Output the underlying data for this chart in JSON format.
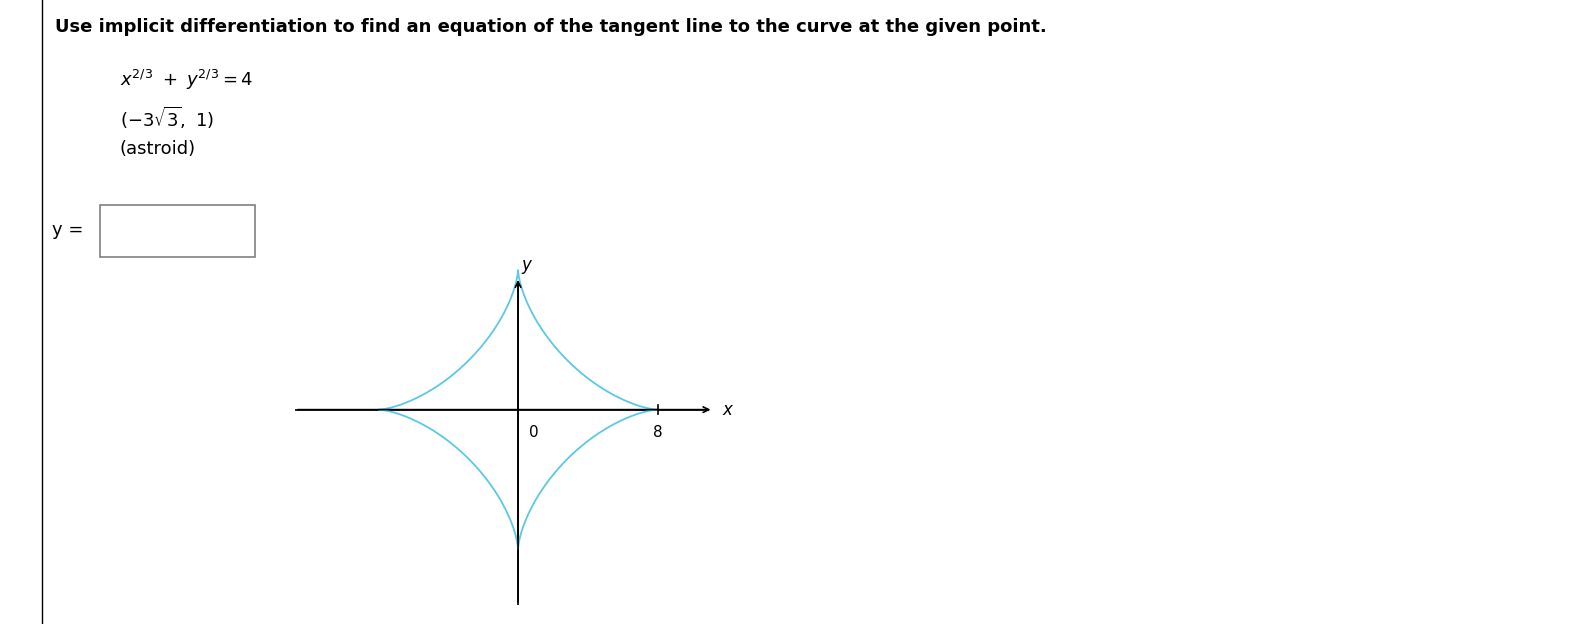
{
  "title": "Use implicit differentiation to find an equation of the tangent line to the curve at the given point.",
  "title_fontsize": 13,
  "astroid_color": "#5bc8e8",
  "astroid_linewidth": 1.3,
  "text_color": "#000000",
  "background_color": "#ffffff",
  "plot_x_label": "x",
  "plot_y_label": "y",
  "x_tick_label": "8",
  "astroid_R": 8,
  "figure_width": 15.94,
  "figure_height": 6.24,
  "dpi": 100
}
